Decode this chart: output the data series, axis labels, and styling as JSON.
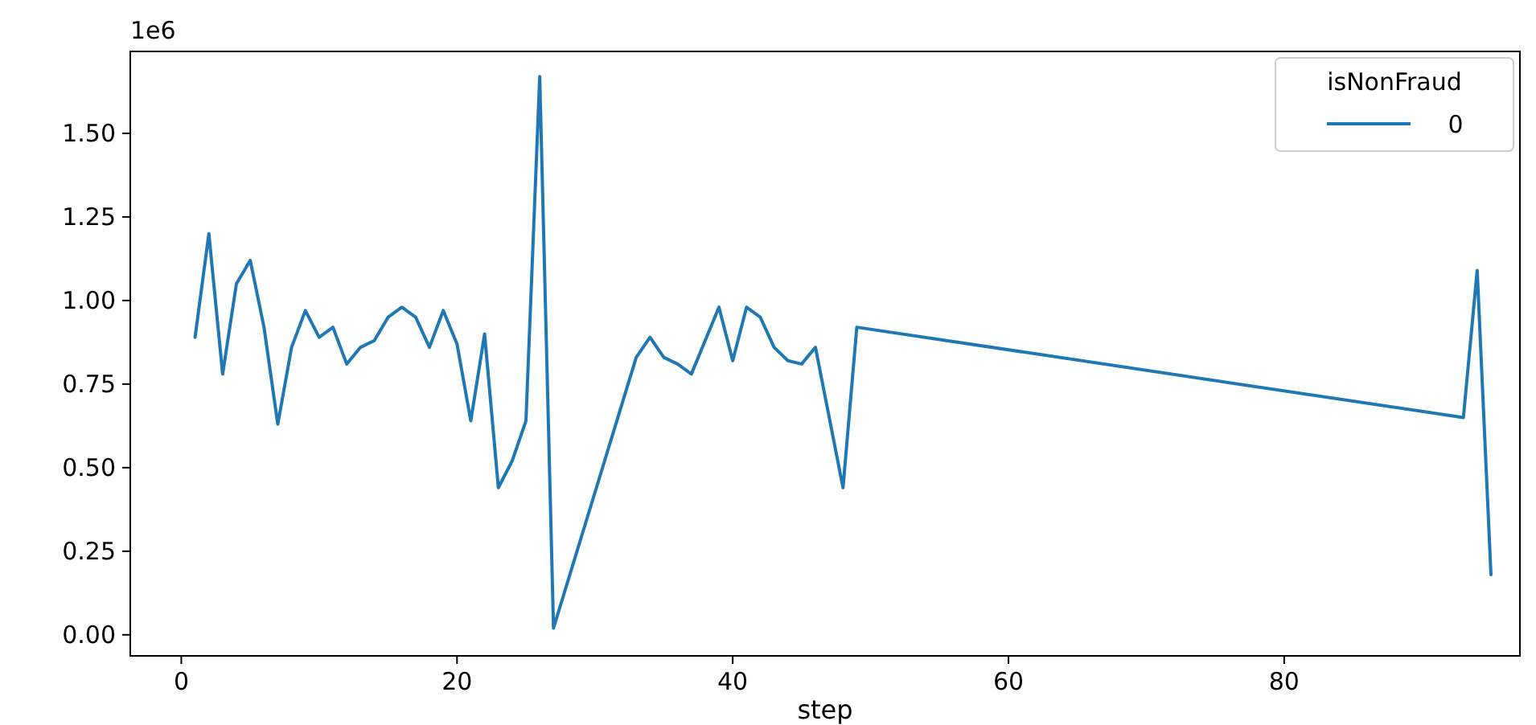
{
  "chart_data": {
    "type": "line",
    "xlabel": "step",
    "legend_title": "isNonFraud",
    "annotations": [
      "1e6"
    ],
    "x": [
      1,
      2,
      3,
      4,
      5,
      6,
      7,
      8,
      9,
      10,
      11,
      12,
      13,
      14,
      15,
      16,
      17,
      18,
      19,
      20,
      21,
      22,
      23,
      24,
      25,
      26,
      27,
      33,
      34,
      35,
      36,
      37,
      38,
      39,
      40,
      41,
      42,
      43,
      44,
      45,
      46,
      47,
      48,
      49,
      93,
      94,
      95
    ],
    "series": [
      {
        "name": "0",
        "color": "#1f77b4",
        "values": [
          0.89,
          1.2,
          0.78,
          1.05,
          1.12,
          0.92,
          0.63,
          0.86,
          0.97,
          0.89,
          0.92,
          0.81,
          0.86,
          0.88,
          0.95,
          0.98,
          0.95,
          0.86,
          0.97,
          0.87,
          0.64,
          0.9,
          0.44,
          0.52,
          0.64,
          1.67,
          0.02,
          0.83,
          0.89,
          0.83,
          0.81,
          0.78,
          0.88,
          0.98,
          0.82,
          0.98,
          0.95,
          0.86,
          0.82,
          0.81,
          0.86,
          0.65,
          0.44,
          0.92,
          0.65,
          1.09,
          0.18
        ]
      }
    ],
    "xlim": [
      -3.7,
      97.1
    ],
    "ylim": [
      -0.063,
      1.745
    ],
    "xticks": [
      0,
      20,
      40,
      60,
      80
    ],
    "yticks": [
      {
        "value": 0,
        "label": "0.00"
      },
      {
        "value": 0.25,
        "label": "0.25"
      },
      {
        "value": 0.5,
        "label": "0.50"
      },
      {
        "value": 0.75,
        "label": "0.75"
      },
      {
        "value": 1,
        "label": "1.00"
      },
      {
        "value": 1.25,
        "label": "1.25"
      },
      {
        "value": 1.5,
        "label": "1.50"
      }
    ],
    "legend": "top right",
    "grid": false,
    "marker": "none",
    "line_style": "solid"
  }
}
